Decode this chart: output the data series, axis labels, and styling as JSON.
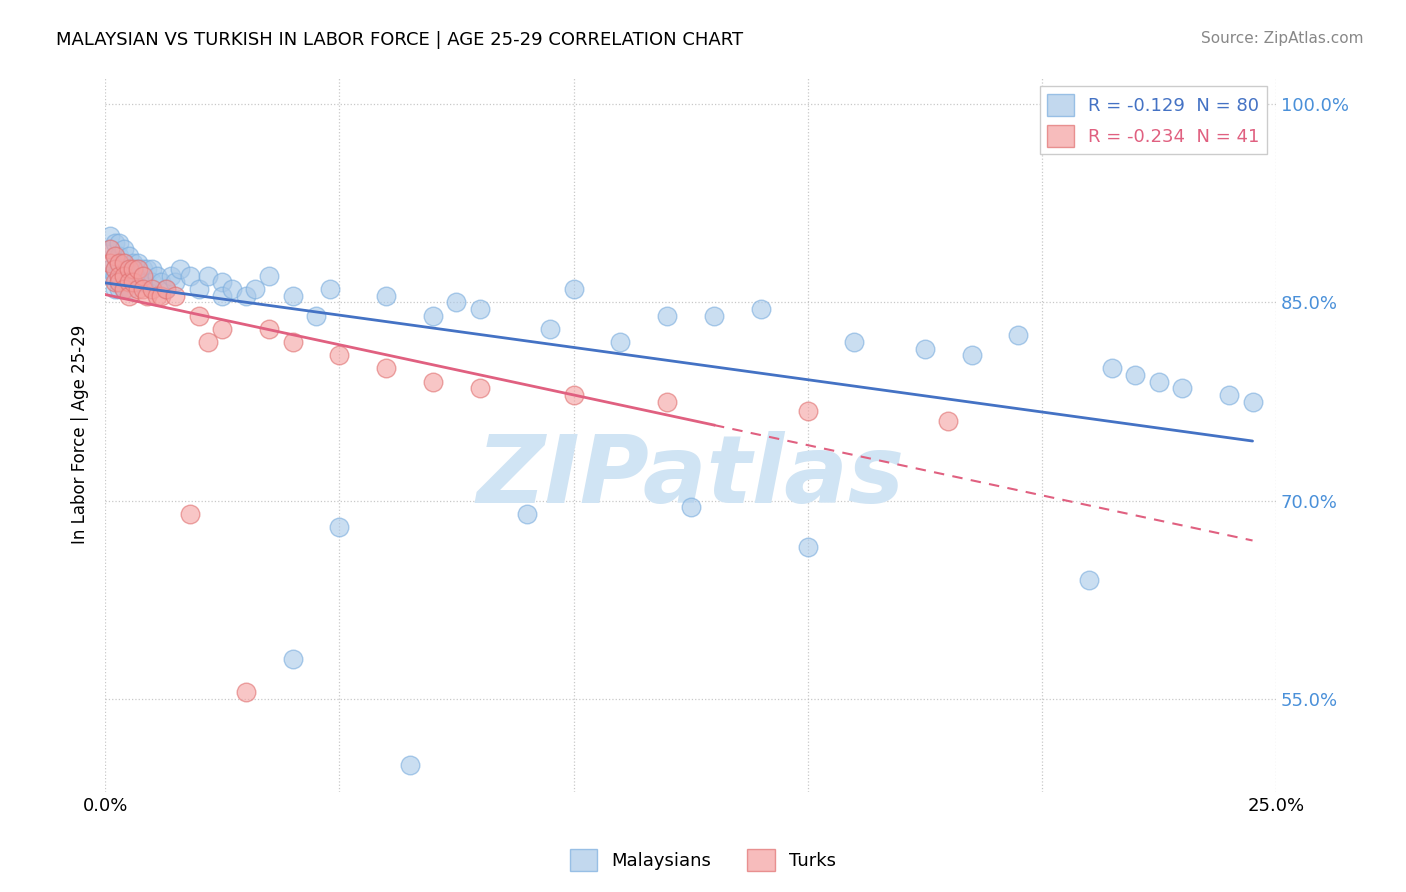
{
  "title": "MALAYSIAN VS TURKISH IN LABOR FORCE | AGE 25-29 CORRELATION CHART",
  "source_text": "Source: ZipAtlas.com",
  "ylabel": "In Labor Force | Age 25-29",
  "xlim": [
    0.0,
    0.25
  ],
  "ylim": [
    0.48,
    1.02
  ],
  "xtick_positions": [
    0.0,
    0.05,
    0.1,
    0.15,
    0.2,
    0.25
  ],
  "xtick_labels": [
    "0.0%",
    "",
    "",
    "",
    "",
    "25.0%"
  ],
  "ytick_labels": [
    "55.0%",
    "70.0%",
    "85.0%",
    "100.0%"
  ],
  "ytick_positions": [
    0.55,
    0.7,
    0.85,
    1.0
  ],
  "R_blue": -0.129,
  "N_blue": 80,
  "R_pink": -0.234,
  "N_pink": 41,
  "blue_color": "#a8c8e8",
  "pink_color": "#f4a0a0",
  "blue_edge_color": "#7aadde",
  "pink_edge_color": "#e07070",
  "blue_line_color": "#4472c4",
  "pink_line_color": "#e06080",
  "watermark": "ZIPatlas",
  "watermark_color": "#d0e4f4",
  "legend_blue_label": "Malaysians",
  "legend_pink_label": "Turks",
  "blue_x": [
    0.001,
    0.001,
    0.001,
    0.001,
    0.002,
    0.002,
    0.002,
    0.002,
    0.002,
    0.003,
    0.003,
    0.003,
    0.003,
    0.003,
    0.003,
    0.004,
    0.004,
    0.004,
    0.004,
    0.004,
    0.005,
    0.005,
    0.005,
    0.005,
    0.006,
    0.006,
    0.007,
    0.007,
    0.007,
    0.008,
    0.008,
    0.009,
    0.009,
    0.01,
    0.01,
    0.011,
    0.012,
    0.013,
    0.014,
    0.015,
    0.016,
    0.018,
    0.02,
    0.022,
    0.025,
    0.025,
    0.027,
    0.03,
    0.032,
    0.035,
    0.04,
    0.04,
    0.045,
    0.048,
    0.05,
    0.06,
    0.065,
    0.07,
    0.075,
    0.08,
    0.09,
    0.095,
    0.1,
    0.11,
    0.12,
    0.125,
    0.13,
    0.14,
    0.15,
    0.16,
    0.175,
    0.185,
    0.195,
    0.21,
    0.215,
    0.22,
    0.225,
    0.23,
    0.24,
    0.245
  ],
  "blue_y": [
    0.9,
    0.89,
    0.875,
    0.87,
    0.895,
    0.885,
    0.875,
    0.87,
    0.86,
    0.895,
    0.885,
    0.88,
    0.875,
    0.865,
    0.86,
    0.89,
    0.88,
    0.875,
    0.865,
    0.86,
    0.885,
    0.875,
    0.87,
    0.86,
    0.88,
    0.87,
    0.88,
    0.875,
    0.865,
    0.875,
    0.865,
    0.875,
    0.865,
    0.875,
    0.865,
    0.87,
    0.865,
    0.86,
    0.87,
    0.865,
    0.875,
    0.87,
    0.86,
    0.87,
    0.865,
    0.855,
    0.86,
    0.855,
    0.86,
    0.87,
    0.855,
    0.58,
    0.84,
    0.86,
    0.68,
    0.855,
    0.5,
    0.84,
    0.85,
    0.845,
    0.69,
    0.83,
    0.86,
    0.82,
    0.84,
    0.695,
    0.84,
    0.845,
    0.665,
    0.82,
    0.815,
    0.81,
    0.825,
    0.64,
    0.8,
    0.795,
    0.79,
    0.785,
    0.78,
    0.775
  ],
  "pink_x": [
    0.001,
    0.001,
    0.002,
    0.002,
    0.002,
    0.003,
    0.003,
    0.003,
    0.004,
    0.004,
    0.004,
    0.005,
    0.005,
    0.005,
    0.006,
    0.006,
    0.007,
    0.007,
    0.008,
    0.008,
    0.009,
    0.01,
    0.011,
    0.012,
    0.013,
    0.015,
    0.018,
    0.02,
    0.022,
    0.025,
    0.03,
    0.035,
    0.04,
    0.05,
    0.06,
    0.07,
    0.08,
    0.1,
    0.12,
    0.15,
    0.18
  ],
  "pink_y": [
    0.89,
    0.88,
    0.885,
    0.875,
    0.865,
    0.88,
    0.87,
    0.865,
    0.88,
    0.87,
    0.86,
    0.875,
    0.865,
    0.855,
    0.875,
    0.865,
    0.875,
    0.86,
    0.87,
    0.86,
    0.855,
    0.86,
    0.855,
    0.855,
    0.86,
    0.855,
    0.69,
    0.84,
    0.82,
    0.83,
    0.555,
    0.83,
    0.82,
    0.81,
    0.8,
    0.79,
    0.785,
    0.78,
    0.775,
    0.768,
    0.76
  ]
}
